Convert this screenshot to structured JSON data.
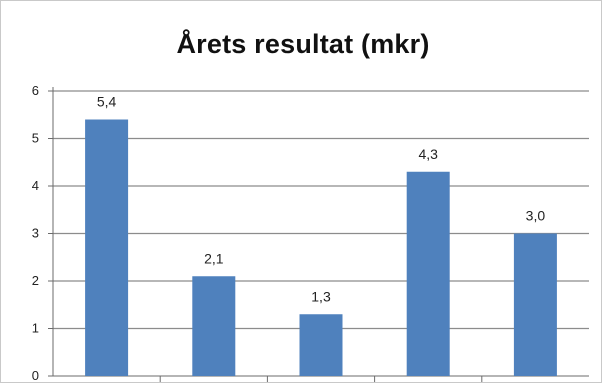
{
  "chart_data": {
    "type": "bar",
    "title": "Årets resultat (mkr)",
    "categories": [
      "",
      "",
      "",
      "",
      ""
    ],
    "values": [
      5.4,
      2.1,
      1.3,
      4.3,
      3.0
    ],
    "data_labels": [
      "5,4",
      "2,1",
      "1,3",
      "4,3",
      "3,0"
    ],
    "y_ticks": [
      "0",
      "1",
      "2",
      "3",
      "4",
      "5",
      "6"
    ],
    "ylim": [
      0,
      6
    ],
    "grid": true,
    "bar_color": "#4f81bd",
    "grid_color": "#8c8c8c",
    "axis_color": "#6b6b6b"
  }
}
